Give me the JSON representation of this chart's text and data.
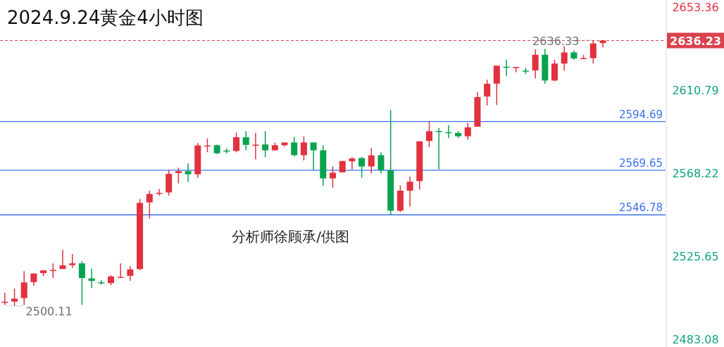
{
  "chart_data": {
    "type": "candlestick",
    "title": "2024.9.24黄金4小时图",
    "annotations": [
      "分析师徐顾承/供图",
      {
        "text": "2636.33",
        "y": 2636.33
      },
      "2500.11"
    ],
    "categories": [
      null,
      null,
      null,
      null,
      null,
      null,
      null,
      null,
      null,
      null,
      null,
      null,
      null,
      null,
      null,
      null,
      null,
      null,
      null,
      null,
      null,
      null,
      null,
      null,
      null,
      null,
      null,
      null,
      null,
      null,
      null,
      null,
      null,
      null,
      null,
      null,
      null,
      null,
      null,
      null,
      null,
      null,
      null,
      null,
      null,
      null,
      null,
      null,
      null,
      null,
      null,
      null,
      null,
      null,
      null,
      null,
      null,
      null,
      null,
      null,
      null,
      null,
      null,
      null,
      null,
      null,
      null,
      null,
      null
    ],
    "ohlc": [
      [
        2502.1,
        2506.9,
        2500.6,
        2502.2
      ],
      [
        2502.3,
        2509.0,
        2500.11,
        2503.8
      ],
      [
        2504.1,
        2517.9,
        2500.6,
        2512.1
      ],
      [
        2512.3,
        2516.7,
        2510.4,
        2516.7
      ],
      [
        2516.9,
        2518.3,
        2515.3,
        2518.3
      ],
      [
        2518.3,
        2521.9,
        2514.4,
        2518.5
      ],
      [
        2519.0,
        2528.8,
        2519.0,
        2520.9
      ],
      [
        2521.0,
        2526.7,
        2519.6,
        2521.9
      ],
      [
        2521.9,
        2523.0,
        2500.6,
        2514.4
      ],
      [
        2514.2,
        2519.2,
        2509.2,
        2512.9
      ],
      [
        2512.2,
        2513.3,
        2511.0,
        2512.1
      ],
      [
        2511.8,
        2515.8,
        2510.7,
        2515.2
      ],
      [
        2514.9,
        2521.9,
        2514.4,
        2515.0
      ],
      [
        2515.5,
        2520.5,
        2512.9,
        2518.8
      ],
      [
        2519.0,
        2554.9,
        2518.4,
        2552.9
      ],
      [
        2553.2,
        2559.2,
        2544.9,
        2557.5
      ],
      [
        2558.0,
        2560.1,
        2556.7,
        2558.1
      ],
      [
        2558.3,
        2570.1,
        2556.7,
        2567.8
      ],
      [
        2568.2,
        2571.0,
        2562.9,
        2569.2
      ],
      [
        2569.2,
        2573.2,
        2563.8,
        2567.6
      ],
      [
        2567.6,
        2583.6,
        2565.8,
        2582.4
      ],
      [
        2582.3,
        2586.0,
        2578.9,
        2582.4
      ],
      [
        2582.5,
        2582.8,
        2577.9,
        2578.4
      ],
      [
        2579.8,
        2580.8,
        2578.2,
        2579.7
      ],
      [
        2579.6,
        2589.1,
        2578.9,
        2586.6
      ],
      [
        2586.6,
        2589.7,
        2579.9,
        2582.7
      ],
      [
        2582.7,
        2588.8,
        2575.3,
        2582.8
      ],
      [
        2582.9,
        2589.7,
        2576.4,
        2579.9
      ],
      [
        2579.9,
        2583.9,
        2579.9,
        2582.5
      ],
      [
        2582.5,
        2583.9,
        2581.9,
        2583.9
      ],
      [
        2583.9,
        2586.8,
        2576.8,
        2577.4
      ],
      [
        2577.4,
        2587.1,
        2574.7,
        2583.9
      ],
      [
        2583.9,
        2583.9,
        2569.6,
        2579.9
      ],
      [
        2579.9,
        2582.5,
        2561.7,
        2565.5
      ],
      [
        2565.5,
        2571.6,
        2560.7,
        2568.4
      ],
      [
        2568.6,
        2574.4,
        2568.6,
        2574.4
      ],
      [
        2574.2,
        2576.4,
        2570.1,
        2575.7
      ],
      [
        2575.9,
        2576.4,
        2565.8,
        2571.6
      ],
      [
        2571.6,
        2581.1,
        2568.1,
        2577.3
      ],
      [
        2577.4,
        2578.9,
        2568.1,
        2569.6
      ],
      [
        2569.6,
        2600.6,
        2546.9,
        2548.9
      ],
      [
        2548.9,
        2561.9,
        2548.3,
        2559.2
      ],
      [
        2559.2,
        2566.5,
        2551.0,
        2563.8
      ],
      [
        2564.1,
        2584.5,
        2559.8,
        2584.5
      ],
      [
        2584.7,
        2594.8,
        2581.6,
        2589.7
      ],
      [
        2589.8,
        2591.4,
        2570.1,
        2589.7
      ],
      [
        2589.2,
        2592.8,
        2586.2,
        2589.1
      ],
      [
        2588.8,
        2589.7,
        2586.2,
        2587.1
      ],
      [
        2587.1,
        2593.9,
        2585.3,
        2591.7
      ],
      [
        2592.0,
        2609.8,
        2592.0,
        2607.2
      ],
      [
        2607.5,
        2616.1,
        2602.9,
        2614.0
      ],
      [
        2614.1,
        2623.3,
        2603.2,
        2623.3
      ],
      [
        2622.8,
        2626.4,
        2618.1,
        2622.7
      ],
      [
        2622.2,
        2622.7,
        2619.9,
        2622.7
      ],
      [
        2620.8,
        2622.2,
        2619.0,
        2620.7
      ],
      [
        2620.9,
        2631.6,
        2616.7,
        2628.9
      ],
      [
        2628.9,
        2631.9,
        2614.1,
        2615.7
      ],
      [
        2615.7,
        2626.4,
        2615.3,
        2624.4
      ],
      [
        2624.4,
        2633.3,
        2620.7,
        2630.1
      ],
      [
        2630.1,
        2631.0,
        2626.4,
        2627.0
      ],
      [
        2626.8,
        2628.8,
        2626.8,
        2627.2
      ],
      [
        2627.2,
        2636.33,
        2624.4,
        2634.7
      ],
      [
        2634.9,
        2636.3,
        2632.7,
        2636.23
      ],
      null,
      null,
      null,
      null,
      null,
      null
    ],
    "colors": [
      "#e0323f",
      "#e0323f",
      "#e0323f",
      "#e0323f",
      "#e0323f",
      "#e0323f",
      "#e0323f",
      "#e0323f",
      "#08a34f",
      "#08a34f",
      "#08a34f",
      "#e0323f",
      "#e0323f",
      "#e0323f",
      "#e0323f",
      "#e0323f",
      "#e0323f",
      "#e0323f",
      "#e0323f",
      "#08a34f",
      "#e0323f",
      "#e0323f",
      "#08a34f",
      "#08a34f",
      "#e0323f",
      "#08a34f",
      "#e0323f",
      "#08a34f",
      "#e0323f",
      "#e0323f",
      "#08a34f",
      "#e0323f",
      "#08a34f",
      "#08a34f",
      "#e0323f",
      "#e0323f",
      "#e0323f",
      "#08a34f",
      "#e0323f",
      "#08a34f",
      "#08a34f",
      "#e0323f",
      "#e0323f",
      "#e0323f",
      "#e0323f",
      "#08a34f",
      "#08a34f",
      "#08a34f",
      "#e0323f",
      "#e0323f",
      "#e0323f",
      "#e0323f",
      "#08a34f",
      "#e0323f",
      "#08a34f",
      "#e0323f",
      "#08a34f",
      "#e0323f",
      "#e0323f",
      "#08a34f",
      "#e0323f",
      "#e0323f",
      "#e0323f",
      null,
      null,
      null,
      null,
      null,
      null
    ],
    "ylim": [
      2479.0,
      2657.0
    ],
    "yticks": [
      2653.36,
      2610.79,
      2568.22,
      2525.65,
      2483.08
    ],
    "tick_labels": "y",
    "ref_lines": [
      {
        "axis": "y",
        "value": 2594.69,
        "label": "2594.69",
        "color": "#3d6ff2"
      },
      {
        "axis": "y",
        "value": 2569.65,
        "label": "2569.65",
        "color": "#3d6ff2"
      },
      {
        "axis": "y",
        "value": 2546.78,
        "label": "2546.78",
        "color": "#3d6ff2"
      },
      {
        "axis": "y",
        "value": 2636.23,
        "label": "2636.23",
        "color": "#d9434e",
        "line_style": "dashed"
      }
    ],
    "grid": false
  }
}
